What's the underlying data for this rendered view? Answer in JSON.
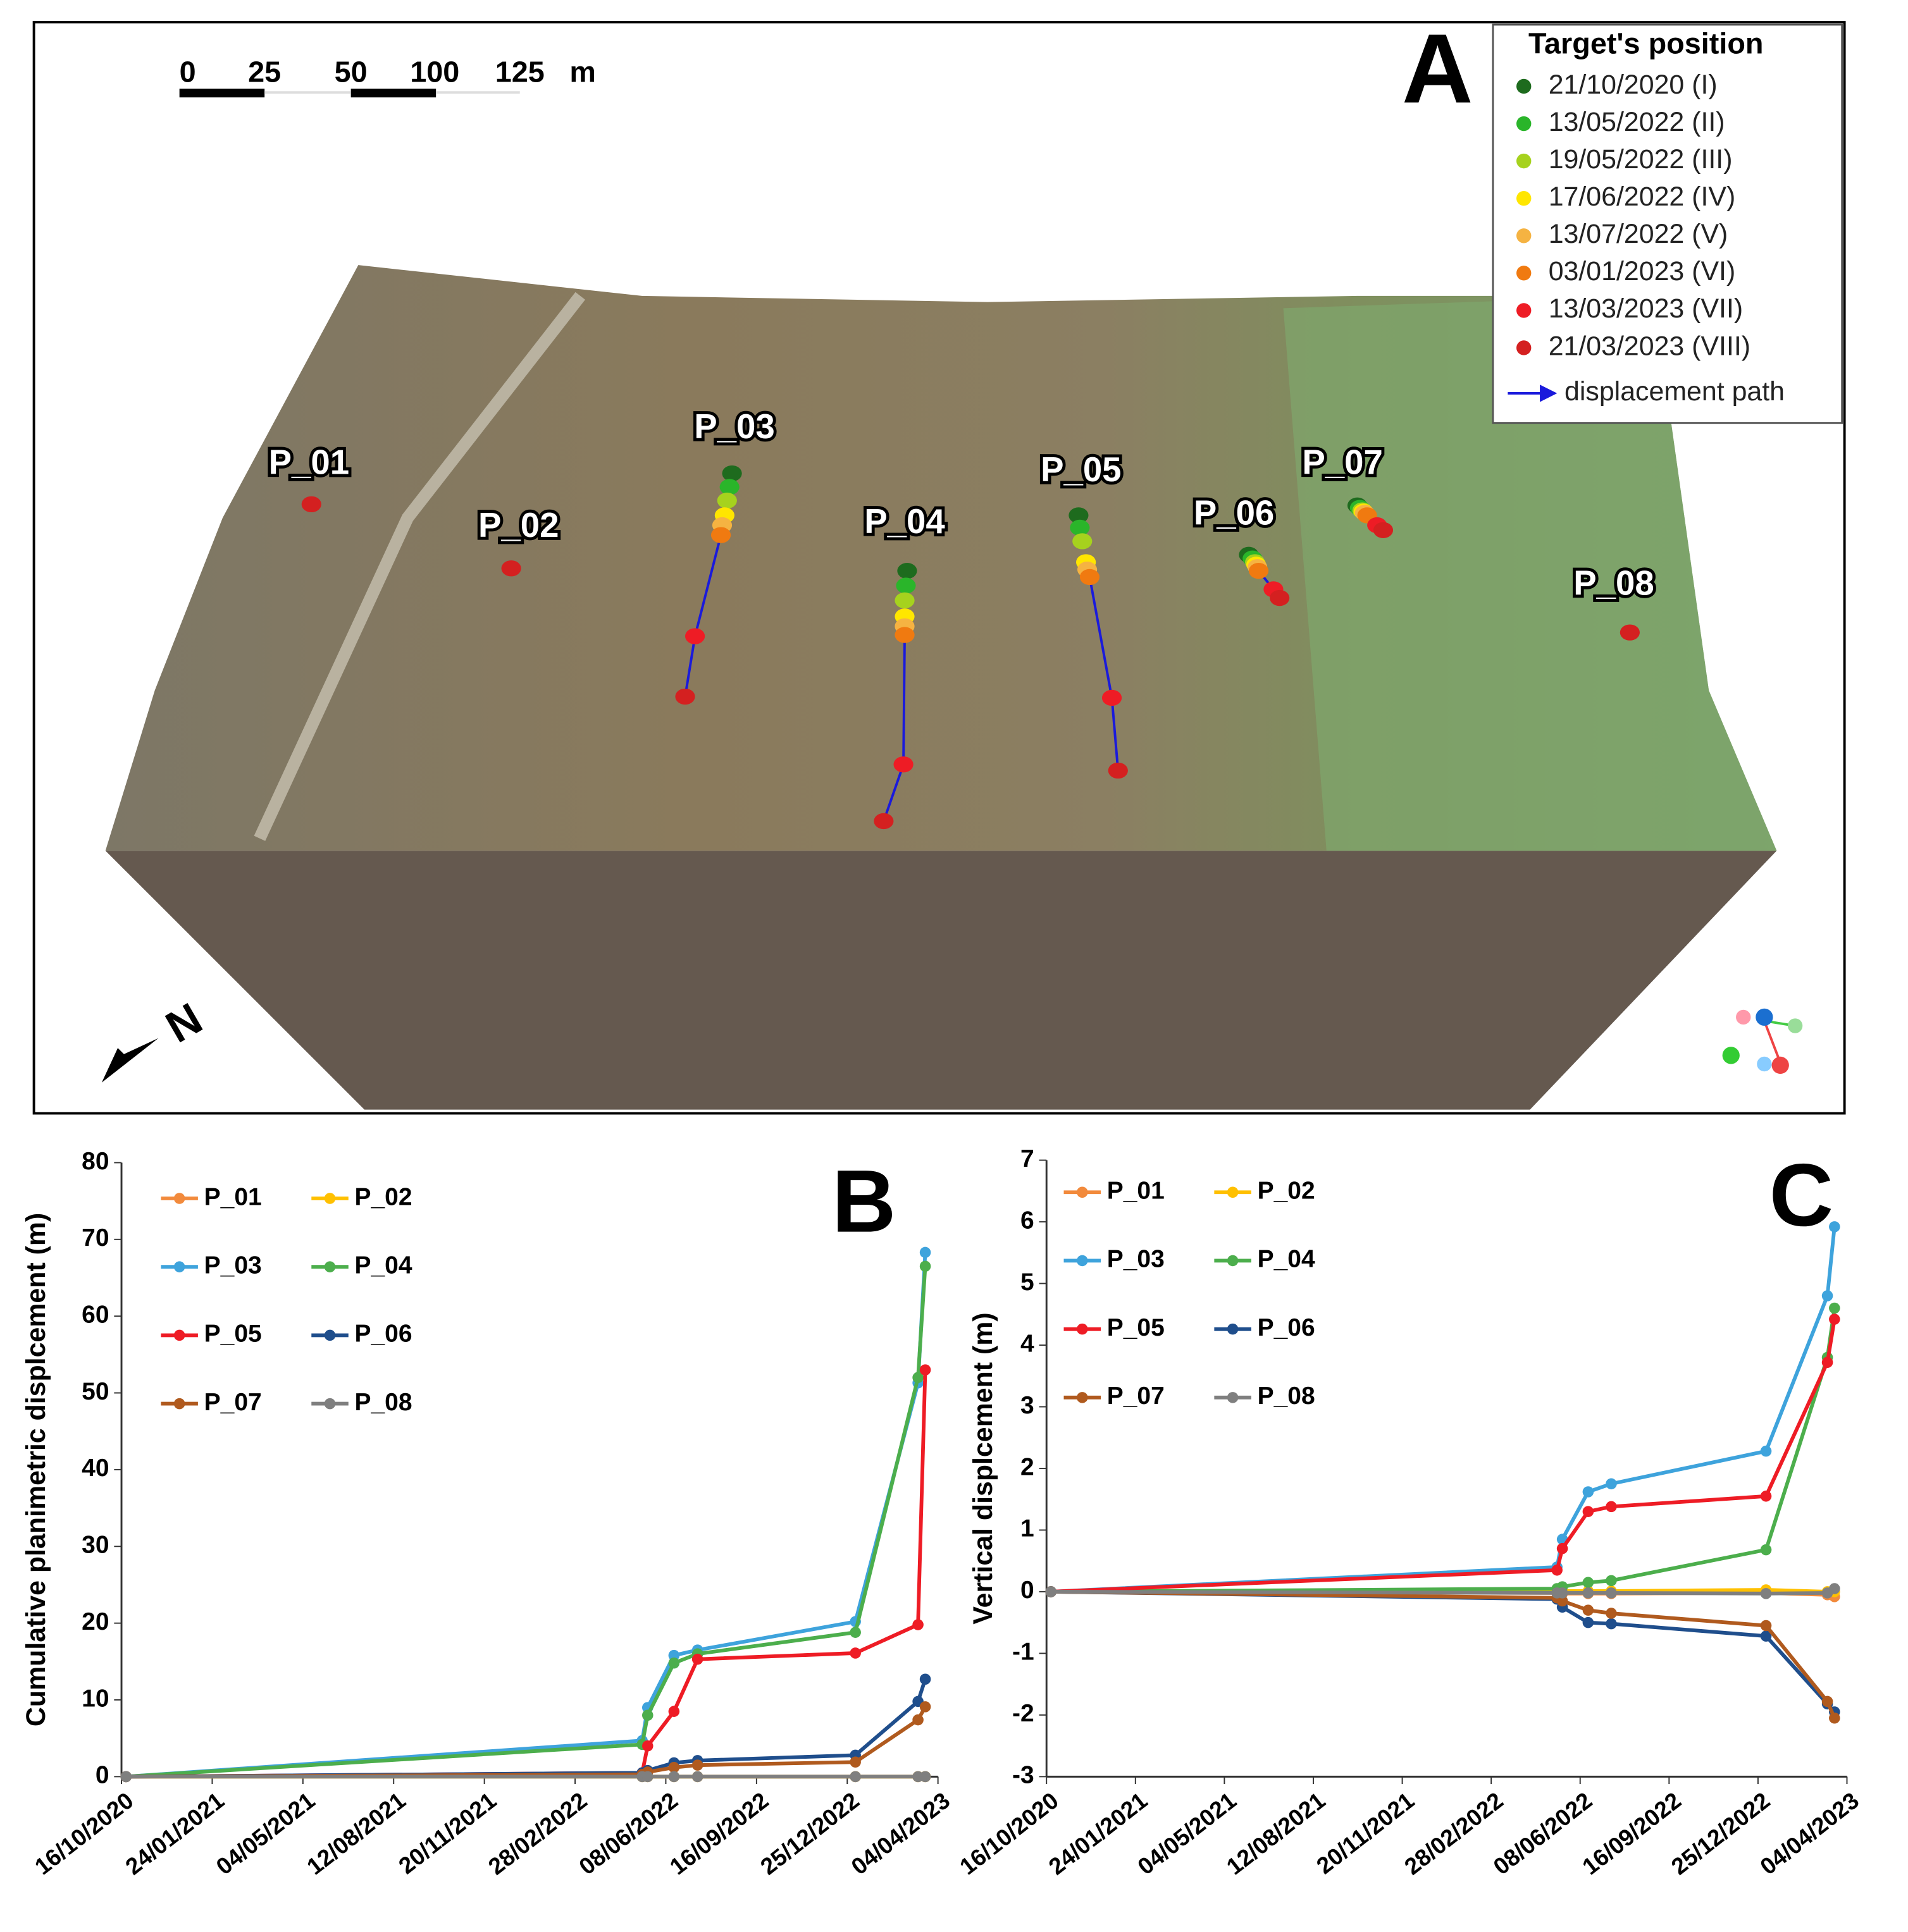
{
  "map": {
    "label": "A",
    "legend_title": "Target's position",
    "legend_entries": [
      {
        "label": "21/10/2020 (I)",
        "color": "#1e6b1e"
      },
      {
        "label": "13/05/2022 (II)",
        "color": "#2ab52a"
      },
      {
        "label": "19/05/2022 (III)",
        "color": "#a6d21e"
      },
      {
        "label": "17/06/2022 (IV)",
        "color": "#ffe600"
      },
      {
        "label": "13/07/2022 (V)",
        "color": "#f5b342"
      },
      {
        "label": "03/01/2023 (VI)",
        "color": "#f07a10"
      },
      {
        "label": "13/03/2023 (VII)",
        "color": "#ee1c25"
      },
      {
        "label": "21/03/2023 (VIII)",
        "color": "#d42020"
      }
    ],
    "path_label": "displacement path",
    "path_color": "#1a1adc",
    "scale_labels": [
      "0",
      "25",
      "50",
      "100",
      "125"
    ],
    "scale_unit": "m",
    "north": "N",
    "targets": [
      "P_01",
      "P_02",
      "P_03",
      "P_04",
      "P_05",
      "P_06",
      "P_07",
      "P_08"
    ]
  },
  "chart_data": [
    {
      "type": "line",
      "label": "B",
      "y_label": "Cumulative planimetric displcement (m)",
      "x": [
        "21/10/2020",
        "13/05/2022",
        "19/05/2022",
        "17/06/2022",
        "13/07/2022",
        "03/01/2023",
        "13/03/2023",
        "21/03/2023"
      ],
      "xlim": [
        "16/10/2020",
        "04/04/2023"
      ],
      "xticks": [
        "16/10/2020",
        "24/01/2021",
        "04/05/2021",
        "12/08/2021",
        "20/11/2021",
        "28/02/2022",
        "08/06/2022",
        "16/09/2022",
        "25/12/2022",
        "04/04/2023"
      ],
      "ylim": [
        0,
        80
      ],
      "yticks": [
        0,
        10,
        20,
        30,
        40,
        50,
        60,
        70,
        80
      ],
      "grid": false,
      "legend": "upper left",
      "series": [
        {
          "name": "P_01",
          "color": "#f28a3c",
          "values": [
            0,
            0,
            0,
            0,
            0,
            0,
            0,
            0
          ]
        },
        {
          "name": "P_02",
          "color": "#ffc000",
          "values": [
            0,
            0,
            0,
            0,
            0,
            0,
            0,
            0
          ]
        },
        {
          "name": "P_03",
          "color": "#3ea3dc",
          "values": [
            0,
            4.7,
            9,
            15.8,
            16.5,
            20.2,
            51.3,
            68.3
          ]
        },
        {
          "name": "P_04",
          "color": "#4cae4c",
          "values": [
            0,
            4.2,
            8,
            14.8,
            16,
            18.8,
            52,
            66.5
          ]
        },
        {
          "name": "P_05",
          "color": "#ee1c25",
          "values": [
            0,
            0.5,
            4,
            8.5,
            15.3,
            16.1,
            19.8,
            53
          ]
        },
        {
          "name": "P_06",
          "color": "#1f4e8c",
          "values": [
            0,
            0.5,
            0.8,
            1.8,
            2.1,
            2.8,
            9.8,
            12.7
          ]
        },
        {
          "name": "P_07",
          "color": "#b05a1e",
          "values": [
            0,
            0.3,
            0.6,
            1.2,
            1.5,
            1.9,
            7.4,
            9.1
          ]
        },
        {
          "name": "P_08",
          "color": "#7f7f7f",
          "values": [
            0,
            0,
            0,
            0,
            0,
            0,
            0,
            0
          ]
        }
      ]
    },
    {
      "type": "line",
      "label": "C",
      "y_label": "Vertical displcement (m)",
      "x": [
        "21/10/2020",
        "13/05/2022",
        "19/05/2022",
        "17/06/2022",
        "13/07/2022",
        "03/01/2023",
        "13/03/2023",
        "21/03/2023"
      ],
      "xlim": [
        "16/10/2020",
        "04/04/2023"
      ],
      "xticks": [
        "16/10/2020",
        "24/01/2021",
        "04/05/2021",
        "12/08/2021",
        "20/11/2021",
        "28/02/2022",
        "08/06/2022",
        "16/09/2022",
        "25/12/2022",
        "04/04/2023"
      ],
      "ylim": [
        -3,
        7
      ],
      "yticks": [
        -3,
        -2,
        -1,
        0,
        1,
        2,
        3,
        4,
        5,
        6,
        7
      ],
      "grid": false,
      "legend": "upper left",
      "series": [
        {
          "name": "P_01",
          "color": "#f28a3c",
          "values": [
            0,
            -0.02,
            -0.03,
            -0.03,
            -0.03,
            -0.02,
            -0.05,
            -0.08
          ]
        },
        {
          "name": "P_02",
          "color": "#ffc000",
          "values": [
            0,
            0.01,
            0.01,
            0.01,
            0.01,
            0.03,
            0,
            0
          ]
        },
        {
          "name": "P_03",
          "color": "#3ea3dc",
          "values": [
            0,
            0.4,
            0.85,
            1.62,
            1.75,
            2.28,
            4.8,
            5.92
          ]
        },
        {
          "name": "P_04",
          "color": "#4cae4c",
          "values": [
            0,
            0.05,
            0.08,
            0.15,
            0.18,
            0.68,
            3.8,
            4.6
          ]
        },
        {
          "name": "P_05",
          "color": "#ee1c25",
          "values": [
            0,
            0.35,
            0.7,
            1.3,
            1.38,
            1.55,
            3.72,
            4.42
          ]
        },
        {
          "name": "P_06",
          "color": "#1f4e8c",
          "values": [
            0,
            -0.12,
            -0.25,
            -0.5,
            -0.52,
            -0.72,
            -1.82,
            -1.95
          ]
        },
        {
          "name": "P_07",
          "color": "#b05a1e",
          "values": [
            0,
            -0.1,
            -0.15,
            -0.3,
            -0.35,
            -0.55,
            -1.78,
            -2.05
          ]
        },
        {
          "name": "P_08",
          "color": "#7f7f7f",
          "values": [
            0,
            -0.02,
            -0.02,
            -0.02,
            -0.02,
            -0.03,
            -0.02,
            0.05
          ]
        }
      ]
    }
  ]
}
